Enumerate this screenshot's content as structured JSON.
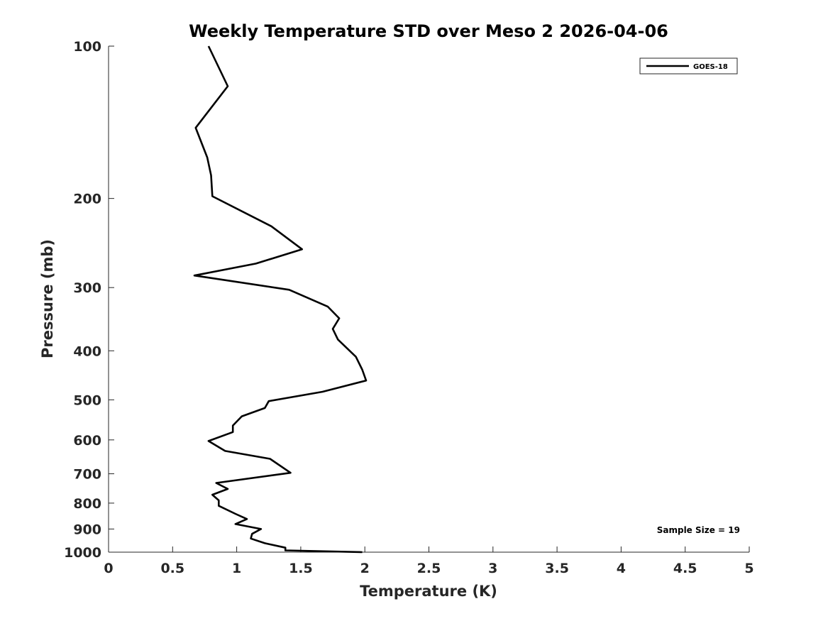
{
  "chart_data": {
    "type": "line",
    "title": "Weekly Temperature STD over Meso 2 2026-04-06",
    "xlabel": "Temperature (K)",
    "ylabel": "Pressure (mb)",
    "xlim": [
      0,
      5
    ],
    "ylim": [
      100,
      1000
    ],
    "y_scale": "log",
    "y_reversed": true,
    "grid": false,
    "x_ticks": [
      0,
      0.5,
      1,
      1.5,
      2,
      2.5,
      3,
      3.5,
      4,
      4.5,
      5
    ],
    "x_tick_labels": [
      "0",
      "0.5",
      "1",
      "1.5",
      "2",
      "2.5",
      "3",
      "3.5",
      "4",
      "4.5",
      "5"
    ],
    "y_ticks": [
      100,
      200,
      300,
      400,
      500,
      600,
      700,
      800,
      900,
      1000
    ],
    "y_tick_labels": [
      "100",
      "200",
      "300",
      "400",
      "500",
      "600",
      "700",
      "800",
      "900",
      "1000"
    ],
    "legend_position": "top-right",
    "series": [
      {
        "name": "GOES-18",
        "color": "#000000",
        "x": [
          0.78,
          0.93,
          0.68,
          0.77,
          0.8,
          0.81,
          1.27,
          1.51,
          1.15,
          0.67,
          1.41,
          1.71,
          1.8,
          1.75,
          1.79,
          1.93,
          1.98,
          2.01,
          1.67,
          1.25,
          1.22,
          1.04,
          0.97,
          0.97,
          0.78,
          0.91,
          1.26,
          1.42,
          0.84,
          0.93,
          0.81,
          0.86,
          0.86,
          0.99,
          1.08,
          0.99,
          1.19,
          1.12,
          1.11,
          1.22,
          1.38,
          1.38,
          1.98
        ],
        "y": [
          100,
          120,
          145,
          166,
          180,
          198,
          227,
          252,
          269,
          284,
          303,
          327,
          345,
          362,
          380,
          411,
          436,
          458,
          482,
          503,
          519,
          539,
          562,
          579,
          603,
          631,
          654,
          697,
          730,
          750,
          770,
          790,
          810,
          840,
          860,
          880,
          900,
          920,
          940,
          960,
          980,
          992,
          1000
        ]
      }
    ],
    "annotations": [
      "Sample Size = 19"
    ]
  }
}
